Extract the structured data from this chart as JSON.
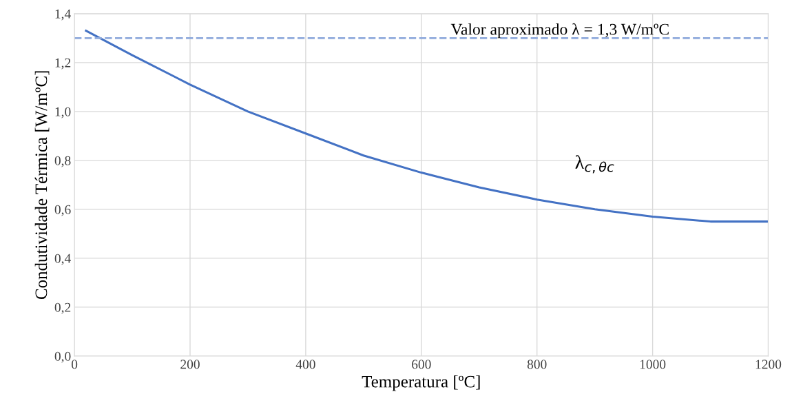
{
  "chart_data": {
    "type": "line",
    "xlabel": "Temperatura [ºC]",
    "ylabel": "Condutividade Térmica [W/mºC]",
    "x": [
      20,
      100,
      200,
      300,
      400,
      500,
      600,
      700,
      800,
      900,
      1000,
      1100,
      1200
    ],
    "series": [
      {
        "color": "#4472c4",
        "values": [
          1.33,
          1.23,
          1.11,
          1.0,
          0.91,
          0.82,
          0.75,
          0.69,
          0.64,
          0.6,
          0.57,
          0.55,
          0.55
        ]
      }
    ],
    "xlim": [
      0,
      1200
    ],
    "xticks": [
      0,
      200,
      400,
      600,
      800,
      1000,
      1200
    ],
    "ylim": [
      0,
      1.4
    ],
    "yticks": [
      {
        "value": 0,
        "label": "0,0"
      },
      {
        "value": 0.2,
        "label": "0,2"
      },
      {
        "value": 0.4,
        "label": "0,4"
      },
      {
        "value": 0.6,
        "label": "0,6"
      },
      {
        "value": 0.8,
        "label": "0,8"
      },
      {
        "value": 1.0,
        "label": "1,0"
      },
      {
        "value": 1.2,
        "label": "1,2"
      },
      {
        "value": 1.4,
        "label": "1,4"
      }
    ],
    "ref_lines": [
      {
        "axis": "y",
        "value": 1.3,
        "label": "Valor aproximado λ = 1,3 W/mºC",
        "color": "#8faadc",
        "line_style": "dashed"
      }
    ],
    "annotations": [
      "λ$_{c,θc}$"
    ],
    "grid": true,
    "legend": false,
    "marker": "none",
    "line_style": "solid"
  }
}
